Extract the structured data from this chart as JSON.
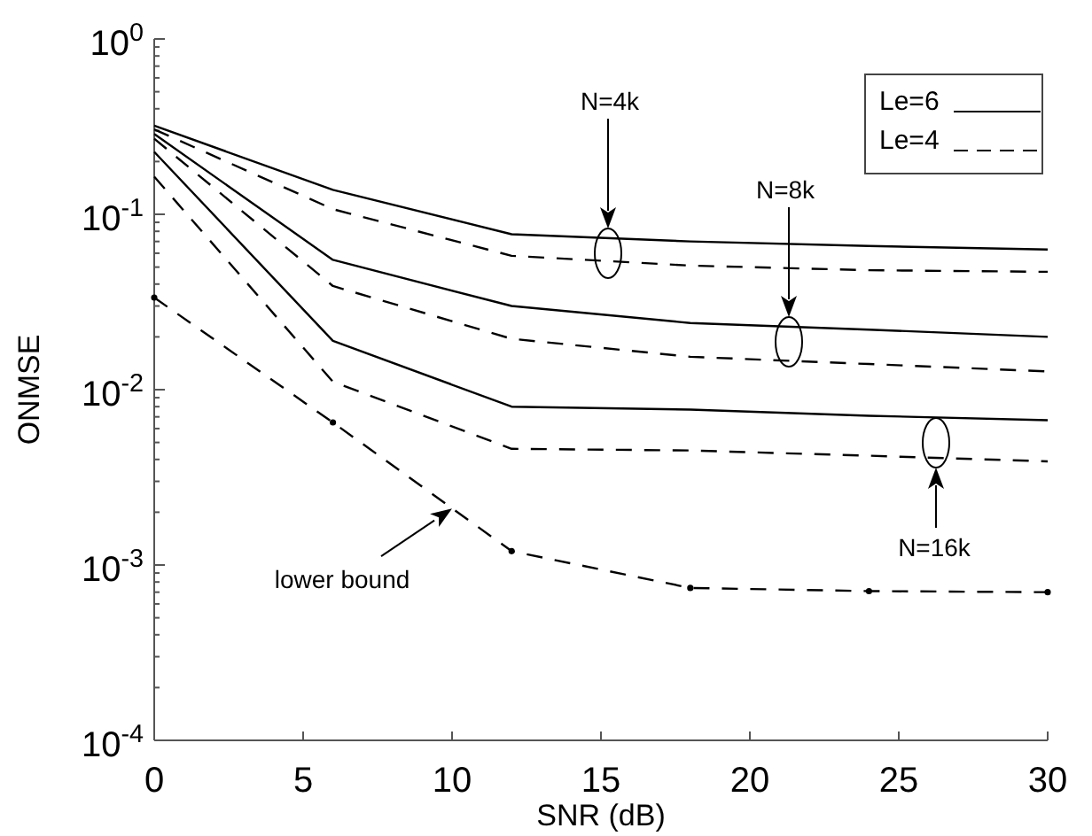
{
  "chart_data": {
    "type": "line",
    "xlabel": "SNR (dB)",
    "ylabel": "ONMSE",
    "log": "y",
    "legend": "top right",
    "grid": false,
    "x": [
      0,
      6,
      12,
      18,
      24,
      30
    ],
    "xlim": [
      0,
      30
    ],
    "xticks": [
      0,
      5,
      10,
      15,
      20,
      25,
      30
    ],
    "ylim": [
      0.0001,
      1
    ],
    "yticks": [
      {
        "value": 0.0001,
        "label": "10$^{-4}$"
      },
      {
        "value": 0.0002,
        "label": null
      },
      {
        "value": 0.0003,
        "label": null
      },
      {
        "value": 0.0004,
        "label": null
      },
      {
        "value": 0.0005,
        "label": null
      },
      {
        "value": 0.0006,
        "label": null
      },
      {
        "value": 0.0007,
        "label": null
      },
      {
        "value": 0.0008,
        "label": null
      },
      {
        "value": 0.0009,
        "label": null
      },
      {
        "value": 0.001,
        "label": "10$^{-3}$"
      },
      {
        "value": 0.002,
        "label": null
      },
      {
        "value": 0.003,
        "label": null
      },
      {
        "value": 0.004,
        "label": null
      },
      {
        "value": 0.005,
        "label": null
      },
      {
        "value": 0.006,
        "label": null
      },
      {
        "value": 0.007,
        "label": null
      },
      {
        "value": 0.008,
        "label": null
      },
      {
        "value": 0.009,
        "label": null
      },
      {
        "value": 0.01,
        "label": "10$^{-2}$"
      },
      {
        "value": 0.02,
        "label": null
      },
      {
        "value": 0.03,
        "label": null
      },
      {
        "value": 0.04,
        "label": null
      },
      {
        "value": 0.05,
        "label": null
      },
      {
        "value": 0.06,
        "label": null
      },
      {
        "value": 0.07,
        "label": null
      },
      {
        "value": 0.08,
        "label": null
      },
      {
        "value": 0.09,
        "label": null
      },
      {
        "value": 0.1,
        "label": "10$^{-1}$"
      },
      {
        "value": 0.2,
        "label": null
      },
      {
        "value": 0.3,
        "label": null
      },
      {
        "value": 0.4,
        "label": null
      },
      {
        "value": 0.5,
        "label": null
      },
      {
        "value": 0.6,
        "label": null
      },
      {
        "value": 0.7,
        "label": null
      },
      {
        "value": 0.8,
        "label": null
      },
      {
        "value": 0.9,
        "label": null
      },
      {
        "value": 1,
        "label": "10$^{0}$"
      }
    ],
    "series": [
      {
        "name": "Le=6",
        "color": "#000000",
        "line_style": "solid",
        "marker": "none",
        "values": [
          0.32,
          0.138,
          0.077,
          0.07,
          0.066,
          0.063
        ]
      },
      {
        "name": "Le=4",
        "color": "#000000",
        "line_style": "dashed",
        "marker": "none",
        "values": [
          0.305,
          0.107,
          0.058,
          0.051,
          0.048,
          0.047
        ]
      },
      {
        "color": "#000000",
        "line_style": "solid",
        "marker": "none",
        "values": [
          0.287,
          0.055,
          0.03,
          0.024,
          0.022,
          0.02
        ]
      },
      {
        "color": "#000000",
        "line_style": "dashed",
        "marker": "none",
        "values": [
          0.27,
          0.039,
          0.0195,
          0.0154,
          0.014,
          0.0127
        ]
      },
      {
        "color": "#000000",
        "line_style": "solid",
        "marker": "none",
        "values": [
          0.227,
          0.019,
          0.008,
          0.0077,
          0.0071,
          0.0067
        ]
      },
      {
        "color": "#000000",
        "line_style": "dashed",
        "marker": "none",
        "values": [
          0.164,
          0.0111,
          0.0046,
          0.0045,
          0.0042,
          0.0039
        ]
      },
      {
        "color": "#000000",
        "line_style": "dashed",
        "marker": "circle",
        "values": [
          0.0335,
          0.0065,
          0.0012,
          0.00074,
          0.00071,
          0.0007
        ]
      }
    ],
    "annotations": [
      "N=4k",
      "N=8k",
      "N=16k",
      {
        "text": "lower bound",
        "x": 10,
        "y": 0.0021
      }
    ]
  }
}
